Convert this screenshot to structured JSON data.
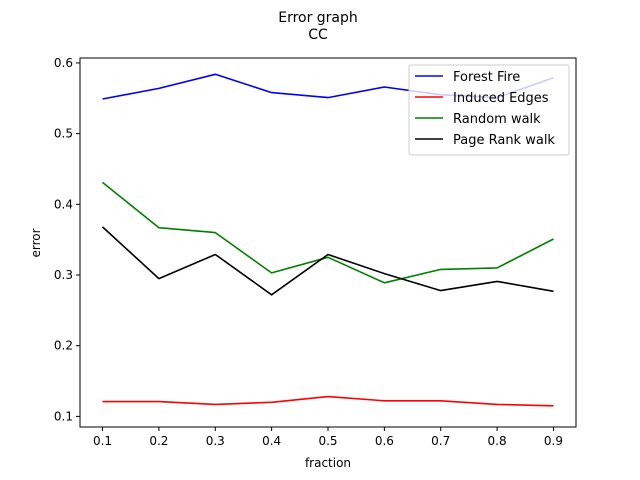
{
  "chart_data": {
    "type": "line",
    "title": "Error graph",
    "subtitle": "CC",
    "xlabel": "fraction",
    "ylabel": "error",
    "x": [
      0.1,
      0.2,
      0.3,
      0.4,
      0.5,
      0.6,
      0.7,
      0.8,
      0.9
    ],
    "xticks": [
      "0.1",
      "0.2",
      "0.3",
      "0.4",
      "0.5",
      "0.6",
      "0.7",
      "0.8",
      "0.9"
    ],
    "yticks": [
      "0.1",
      "0.2",
      "0.3",
      "0.4",
      "0.5",
      "0.6"
    ],
    "xlim": [
      0.06,
      0.94
    ],
    "ylim": [
      0.085,
      0.607
    ],
    "grid": false,
    "legend_position": "top-right",
    "series": [
      {
        "name": "Forest Fire",
        "color": "#0000ff",
        "values": [
          0.549,
          0.564,
          0.584,
          0.558,
          0.551,
          0.566,
          0.555,
          0.551,
          0.579
        ]
      },
      {
        "name": "Induced Edges",
        "color": "#ff0000",
        "values": [
          0.121,
          0.121,
          0.117,
          0.12,
          0.128,
          0.122,
          0.122,
          0.117,
          0.115
        ]
      },
      {
        "name": "Random walk",
        "color": "#008000",
        "values": [
          0.431,
          0.367,
          0.36,
          0.303,
          0.325,
          0.289,
          0.308,
          0.31,
          0.351
        ]
      },
      {
        "name": "Page Rank walk",
        "color": "#000000",
        "values": [
          0.368,
          0.295,
          0.329,
          0.272,
          0.329,
          0.302,
          0.278,
          0.291,
          0.277
        ]
      }
    ]
  }
}
